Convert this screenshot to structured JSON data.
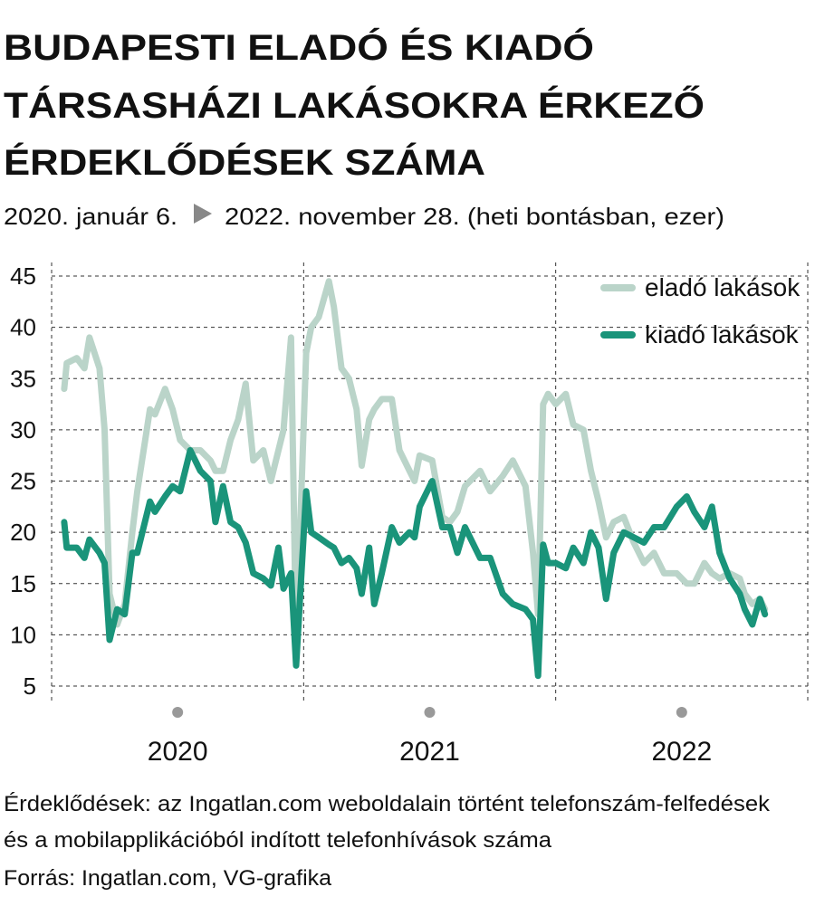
{
  "chart_data": {
    "type": "line",
    "title": [
      "BUDAPESTI ELADÓ ÉS KIADÓ",
      "TÁRSASHÁZI LAKÁSOKRA ÉRKEZŐ",
      "ÉRDEKLŐDÉSEK SZÁMA"
    ],
    "subtitle_start": "2020. január 6.",
    "subtitle_end": "2022. november 28. (heti bontásban, ezer)",
    "notes": [
      "Érdeklődések: az Ingatlan.com weboldalain történt telefonszám-felfedések",
      "és a mobilapplikációból indított telefonhívások száma",
      "Forrás: Ingatlan.com, VG-grafika"
    ],
    "x": [
      2020.05,
      2020.06,
      2020.1,
      2020.13,
      2020.15,
      2020.19,
      2020.21,
      2020.23,
      2020.26,
      2020.29,
      2020.32,
      2020.34,
      2020.39,
      2020.41,
      2020.45,
      2020.48,
      2020.51,
      2020.55,
      2020.59,
      2020.63,
      2020.65,
      2020.68,
      2020.71,
      2020.74,
      2020.77,
      2020.8,
      2020.84,
      2020.87,
      2020.9,
      2020.92,
      2020.95,
      2020.97,
      2021.01,
      2021.03,
      2021.06,
      2021.1,
      2021.12,
      2021.15,
      2021.18,
      2021.21,
      2021.23,
      2021.26,
      2021.28,
      2021.31,
      2021.35,
      2021.38,
      2021.42,
      2021.44,
      2021.46,
      2021.51,
      2021.55,
      2021.58,
      2021.61,
      2021.64,
      2021.7,
      2021.74,
      2021.79,
      2021.83,
      2021.88,
      2021.91,
      2021.93,
      2021.95,
      2021.97,
      2022.0,
      2022.04,
      2022.07,
      2022.11,
      2022.14,
      2022.17,
      2022.2,
      2022.23,
      2022.27,
      2022.31,
      2022.35,
      2022.39,
      2022.43,
      2022.48,
      2022.52,
      2022.55,
      2022.59,
      2022.62,
      2022.65,
      2022.69,
      2022.73,
      2022.75,
      2022.78,
      2022.81,
      2022.83
    ],
    "series": [
      {
        "name": "eladó lakások",
        "color": "#bad4c9",
        "values": [
          34,
          36.5,
          37,
          36,
          39,
          36,
          30,
          14,
          11,
          13,
          20,
          24,
          32,
          31.5,
          34,
          32,
          29,
          28,
          28,
          27,
          26,
          26,
          29,
          31,
          34.5,
          27,
          28,
          25,
          28,
          30,
          39,
          9,
          37.5,
          40,
          41,
          44.5,
          42,
          36,
          35,
          32,
          26.5,
          31,
          32,
          33,
          33,
          28,
          26,
          25,
          27.5,
          27,
          21.5,
          21,
          22,
          24.5,
          26,
          24,
          25.5,
          27,
          24.5,
          18,
          12,
          32.5,
          33.5,
          32.5,
          33.5,
          30.5,
          30,
          26,
          23,
          19.5,
          21,
          21.5,
          19,
          17,
          18,
          16,
          16,
          15,
          15,
          17,
          16,
          15.5,
          16,
          15.5,
          14,
          13,
          13.5,
          12.5
        ]
      },
      {
        "name": "kiadó lakások",
        "color": "#1a947a",
        "values": [
          21,
          18.5,
          18.5,
          17.5,
          19.3,
          18,
          17,
          9.5,
          12.5,
          12,
          18,
          18,
          23,
          22,
          23.5,
          24.5,
          24,
          28,
          26,
          25,
          21,
          24.5,
          21,
          20.5,
          19,
          16,
          15.5,
          14.8,
          18.5,
          14.5,
          16,
          7,
          24,
          20,
          19.5,
          18.8,
          18.5,
          17,
          17.5,
          16.5,
          14,
          18.5,
          13,
          16,
          20.5,
          19,
          20,
          19.5,
          22.5,
          25,
          20.5,
          20.5,
          18,
          20.5,
          17.5,
          17.5,
          14,
          13,
          12.5,
          11.5,
          6,
          18.8,
          17,
          17,
          16.5,
          18.5,
          17,
          20,
          18.5,
          13.5,
          18,
          20,
          19.5,
          19,
          20.5,
          20.5,
          22.5,
          23.5,
          22,
          20.5,
          22.5,
          18,
          15.5,
          14,
          12.5,
          11,
          13.5,
          12
        ]
      }
    ],
    "xlim": [
      2020,
      2023
    ],
    "xticks": [
      {
        "value": 2020.5,
        "label": "2020"
      },
      {
        "value": 2021.5,
        "label": "2021"
      },
      {
        "value": 2022.5,
        "label": "2022"
      }
    ],
    "x_gridlines": [
      2020,
      2021,
      2022,
      2023
    ],
    "ylim": [
      5,
      45
    ],
    "yticks": [
      5,
      10,
      15,
      20,
      25,
      30,
      35,
      40,
      45
    ],
    "grid": true,
    "legend": "top-right"
  }
}
